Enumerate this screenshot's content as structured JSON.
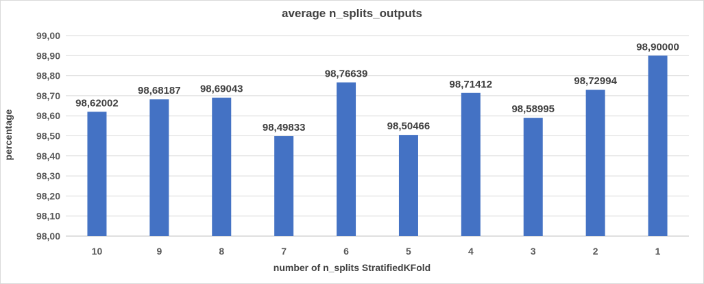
{
  "chart_data": {
    "type": "bar",
    "title": "average n_splits_outputs",
    "xlabel": "number of n_splits StratifiedKFold",
    "ylabel": "percentage",
    "categories": [
      "10",
      "9",
      "8",
      "7",
      "6",
      "5",
      "4",
      "3",
      "2",
      "1"
    ],
    "values": [
      98.62002,
      98.68187,
      98.69043,
      98.49833,
      98.76639,
      98.50466,
      98.71412,
      98.58995,
      98.72994,
      98.9
    ],
    "data_labels": [
      "98,62002",
      "98,68187",
      "98,69043",
      "98,49833",
      "98,76639",
      "98,50466",
      "98,71412",
      "98,58995",
      "98,72994",
      "98,90000"
    ],
    "ylim": [
      98.0,
      99.0
    ],
    "yticks": [
      98.0,
      98.1,
      98.2,
      98.3,
      98.4,
      98.5,
      98.6,
      98.7,
      98.8,
      98.9,
      99.0
    ],
    "ytick_labels": [
      "98,00",
      "98,10",
      "98,20",
      "98,30",
      "98,40",
      "98,50",
      "98,60",
      "98,70",
      "98,80",
      "98,90",
      "99,00"
    ],
    "grid": true,
    "legend": "none",
    "bar_color": "#4472C4"
  }
}
